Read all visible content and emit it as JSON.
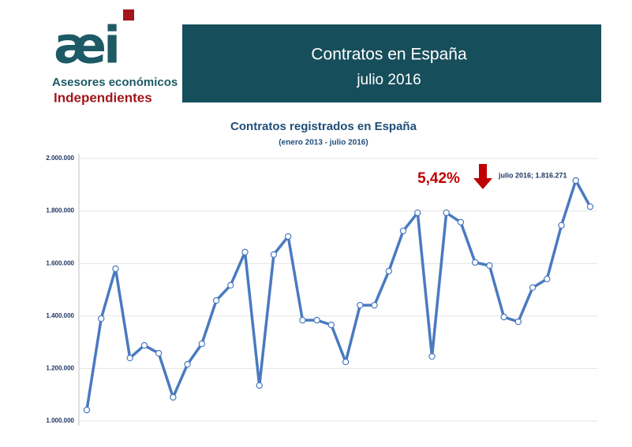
{
  "header": {
    "logo_mark": "æi",
    "logo_line1": "Asesores económicos",
    "logo_line2": "Independientes",
    "title": "Contratos en España",
    "subtitle": "julio 2016"
  },
  "chart_data": {
    "type": "line",
    "title": "Contratos registrados en España",
    "subtitle": "(enero 2013 - julio 2016)",
    "series": [
      {
        "name": "Contratos",
        "color": "#4a7ac0",
        "values": [
          1042000,
          1390000,
          1580000,
          1240000,
          1288000,
          1258000,
          1090000,
          1216000,
          1294000,
          1459000,
          1517000,
          1643000,
          1135000,
          1634000,
          1703000,
          1384000,
          1384000,
          1366000,
          1225000,
          1441000,
          1441000,
          1571000,
          1724000,
          1793000,
          1246000,
          1793000,
          1757000,
          1604000,
          1592000,
          1396000,
          1378000,
          1508000,
          1541000,
          1745000,
          1916000,
          1816271
        ]
      }
    ],
    "ylim": [
      1000000,
      2000000
    ],
    "yticks": [
      {
        "value": 1000000,
        "label": "1.000.000"
      },
      {
        "value": 1200000,
        "label": "1.200.000"
      },
      {
        "value": 1400000,
        "label": "1.400.000"
      },
      {
        "value": 1600000,
        "label": "1.600.000"
      },
      {
        "value": 1800000,
        "label": "1.800.000"
      },
      {
        "value": 2000000,
        "label": "2.000.000"
      }
    ],
    "grid": true,
    "annotations": [
      "5,42%",
      "julio 2016; 1.816.271"
    ]
  }
}
